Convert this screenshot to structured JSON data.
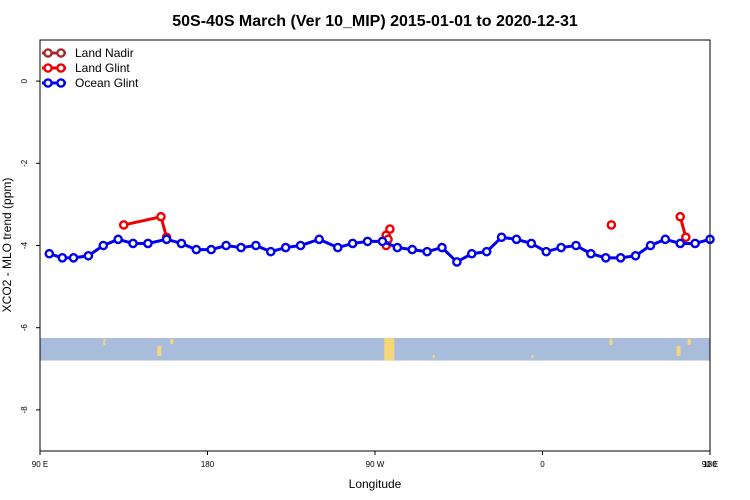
{
  "chart_data": {
    "type": "line",
    "title": "50S-40S March (Ver 10_MIP)   2015-01-01 to 2020-12-31",
    "xlabel": "Longitude",
    "ylabel": "XCO2 - MLO trend (ppm)",
    "xlim": [
      90,
      450
    ],
    "ylim": [
      -9,
      1
    ],
    "xticks": [
      {
        "value": 90,
        "label": "90 E"
      },
      {
        "value": 180,
        "label": "180"
      },
      {
        "value": 270,
        "label": "90 W"
      },
      {
        "value": 360,
        "label": "0"
      },
      {
        "value": 450,
        "label": "90 E"
      },
      {
        "value": 540,
        "label": "180"
      }
    ],
    "yticks": [
      {
        "value": 0,
        "label": "0"
      },
      {
        "value": -2,
        "label": "-2"
      },
      {
        "value": -4,
        "label": "-4"
      },
      {
        "value": -6,
        "label": "-6"
      },
      {
        "value": -8,
        "label": "-8"
      }
    ],
    "legend_position": "top-left",
    "land_band": {
      "y_top": -6.25,
      "y_bottom": -6.8,
      "ocean_color": "#a9bcdc",
      "land_color": "#f5d77a"
    },
    "series": [
      {
        "name": "Land Nadir",
        "color": "#a52a2a",
        "segments": []
      },
      {
        "name": "Land Glint",
        "color": "#ee0000",
        "segments": [
          [
            [
              135,
              -3.5
            ],
            [
              155,
              -3.3
            ],
            [
              158,
              -3.8
            ]
          ],
          [
            [
              276,
              -3.75
            ],
            [
              278,
              -3.6
            ],
            [
              277,
              -3.85
            ],
            [
              276,
              -4.0
            ]
          ],
          [
            [
              397,
              -3.5
            ]
          ],
          [
            [
              434,
              -3.3
            ],
            [
              437,
              -3.8
            ]
          ]
        ]
      },
      {
        "name": "Ocean Glint",
        "color": "#0000ee",
        "segments": [
          [
            [
              95,
              -4.2
            ],
            [
              102,
              -4.3
            ],
            [
              108,
              -4.3
            ],
            [
              116,
              -4.25
            ],
            [
              124,
              -4.0
            ],
            [
              132,
              -3.85
            ],
            [
              140,
              -3.95
            ],
            [
              148,
              -3.95
            ],
            [
              158,
              -3.85
            ],
            [
              166,
              -3.95
            ],
            [
              174,
              -4.1
            ],
            [
              182,
              -4.1
            ],
            [
              190,
              -4.0
            ],
            [
              198,
              -4.05
            ],
            [
              206,
              -4.0
            ],
            [
              214,
              -4.15
            ],
            [
              222,
              -4.05
            ],
            [
              230,
              -4.0
            ],
            [
              240,
              -3.85
            ],
            [
              250,
              -4.05
            ],
            [
              258,
              -3.95
            ],
            [
              266,
              -3.9
            ],
            [
              274,
              -3.9
            ],
            [
              282,
              -4.05
            ],
            [
              290,
              -4.1
            ],
            [
              298,
              -4.15
            ],
            [
              306,
              -4.05
            ],
            [
              314,
              -4.4
            ],
            [
              322,
              -4.2
            ],
            [
              330,
              -4.15
            ],
            [
              338,
              -3.8
            ],
            [
              346,
              -3.85
            ],
            [
              354,
              -3.95
            ],
            [
              362,
              -4.15
            ],
            [
              370,
              -4.05
            ],
            [
              378,
              -4.0
            ],
            [
              386,
              -4.2
            ],
            [
              394,
              -4.3
            ],
            [
              402,
              -4.3
            ],
            [
              410,
              -4.25
            ],
            [
              418,
              -4.0
            ],
            [
              426,
              -3.85
            ],
            [
              434,
              -3.95
            ],
            [
              442,
              -3.95
            ],
            [
              450,
              -3.85
            ]
          ]
        ]
      }
    ]
  }
}
